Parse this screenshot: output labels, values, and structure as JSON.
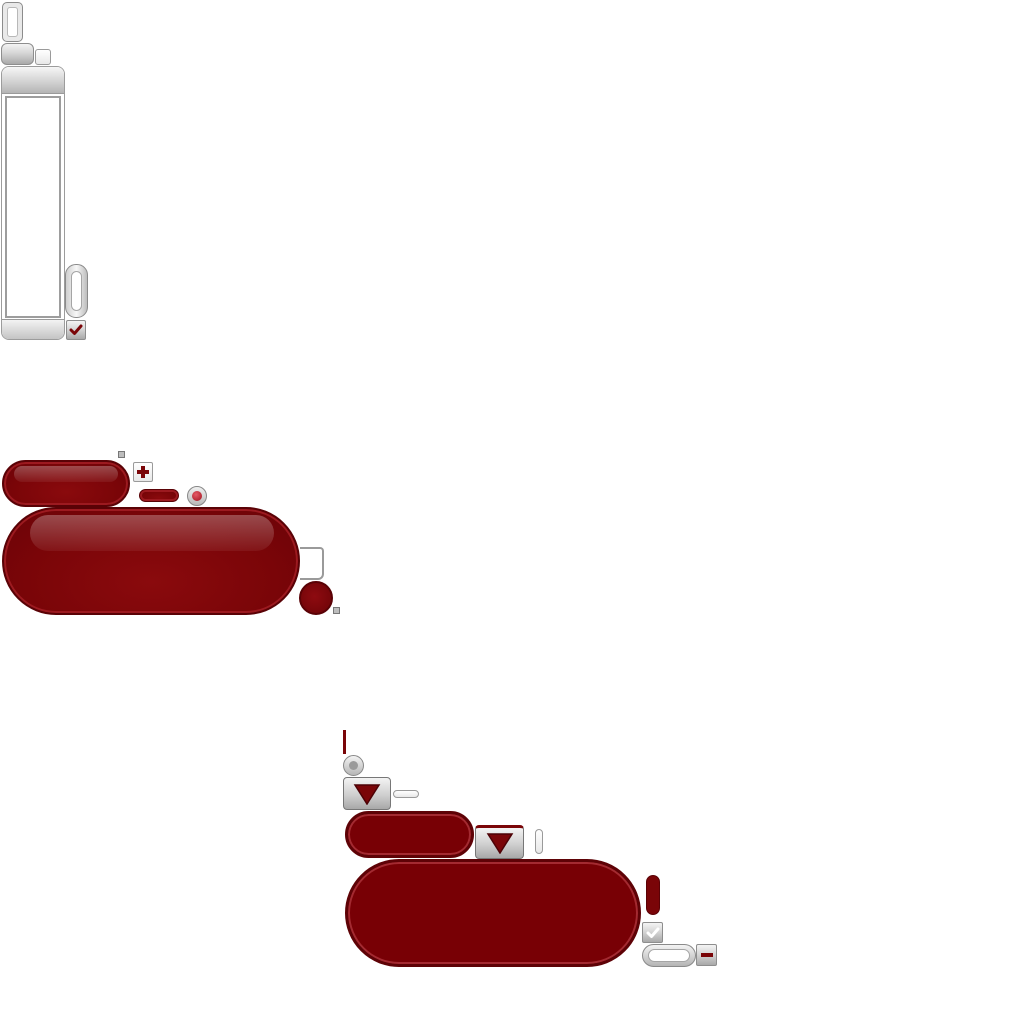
{
  "theme": {
    "background": "#ffffff",
    "accent_red": "#7a0508",
    "accent_red_dark": "#5a0206",
    "silver_light": "#f4f4f4",
    "silver_dark": "#a9a9a9",
    "border_gray": "#8e8e8e"
  },
  "icons": {
    "check": "checkmark-icon",
    "plus": "plus-icon",
    "minus": "minus-icon",
    "dropdown": "triangle-down-icon",
    "radio": "radio-dot-icon"
  }
}
